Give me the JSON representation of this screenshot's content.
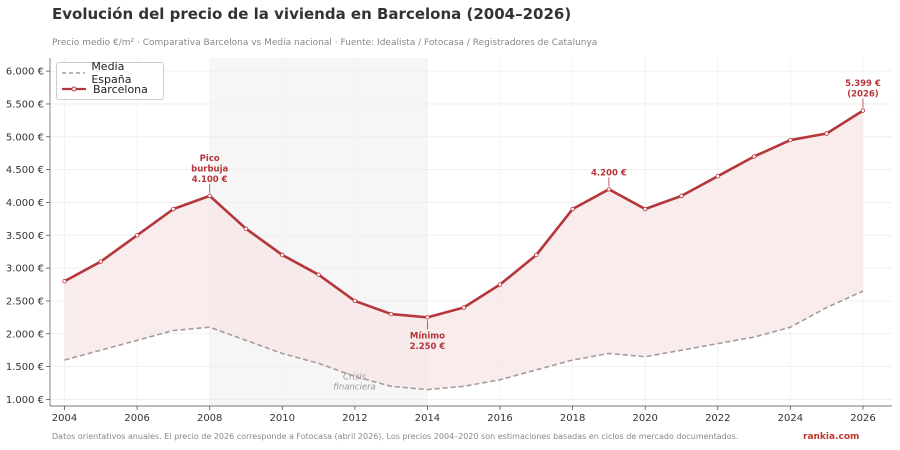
{
  "title": "Evolución del precio de la vivienda en Barcelona (2004–2026)",
  "subtitle": "Precio medio €/m² · Comparativa Barcelona vs Media nacional · Fuente: Idealista / Fotocasa / Registradores de Catalunya",
  "footer_note": "Datos orientativos anuales. El precio de 2026 corresponde a Fotocasa (abril 2026). Los precios 2004–2020 son estimaciones basadas en ciclos de mercado documentados.",
  "brand": "rankia.com",
  "colors": {
    "barcelona": "#b5373b",
    "espana": "#a89a9b",
    "fill": "#f7e6e6",
    "shade": "#ececec"
  },
  "chart_data": {
    "type": "line",
    "x": [
      2004,
      2005,
      2006,
      2007,
      2008,
      2009,
      2010,
      2011,
      2012,
      2013,
      2014,
      2015,
      2016,
      2017,
      2018,
      2019,
      2020,
      2021,
      2022,
      2023,
      2024,
      2025,
      2026
    ],
    "series": [
      {
        "name": "Media España",
        "style": "dashed",
        "values": [
          1600,
          1750,
          1900,
          2050,
          2100,
          1900,
          1700,
          1550,
          1350,
          1200,
          1150,
          1200,
          1300,
          1450,
          1600,
          1700,
          1650,
          1750,
          1850,
          1950,
          2100,
          2400,
          2650
        ]
      },
      {
        "name": "Barcelona",
        "style": "solid",
        "values": [
          2800,
          3100,
          3500,
          3900,
          4100,
          3600,
          3200,
          2900,
          2500,
          2300,
          2250,
          2400,
          2750,
          3200,
          3900,
          4200,
          3900,
          4100,
          4400,
          4700,
          4950,
          5050,
          5399
        ]
      }
    ],
    "xlim": [
      2003.6,
      2026.8
    ],
    "ylim": [
      900,
      6200
    ],
    "xticks": [
      2004,
      2006,
      2008,
      2010,
      2012,
      2014,
      2016,
      2018,
      2020,
      2022,
      2024,
      2026
    ],
    "yticks": [
      1000,
      1500,
      2000,
      2500,
      3000,
      3500,
      4000,
      4500,
      5000,
      5500,
      6000
    ],
    "ytick_labels": [
      "1.000 €",
      "1.500 €",
      "2.000 €",
      "2.500 €",
      "3.000 €",
      "3.500 €",
      "4.000 €",
      "4.500 €",
      "5.000 €",
      "5.500 €",
      "6.000 €"
    ],
    "shaded_region": {
      "x0": 2008,
      "x1": 2014,
      "label": [
        "Crisis",
        "financiera"
      ]
    },
    "annotations": [
      {
        "x": 2008,
        "y": 4100,
        "lines": [
          "Pico",
          "burbuja",
          "4.100 €"
        ],
        "position": "above"
      },
      {
        "x": 2014,
        "y": 2250,
        "lines": [
          "Mínimo",
          "2.250 €"
        ],
        "position": "below"
      },
      {
        "x": 2019,
        "y": 4200,
        "lines": [
          "4.200 €"
        ],
        "position": "above"
      },
      {
        "x": 2026,
        "y": 5399,
        "lines": [
          "5.399 €",
          "(2026)"
        ],
        "position": "above"
      }
    ],
    "grid": true,
    "legend": "top-left"
  }
}
